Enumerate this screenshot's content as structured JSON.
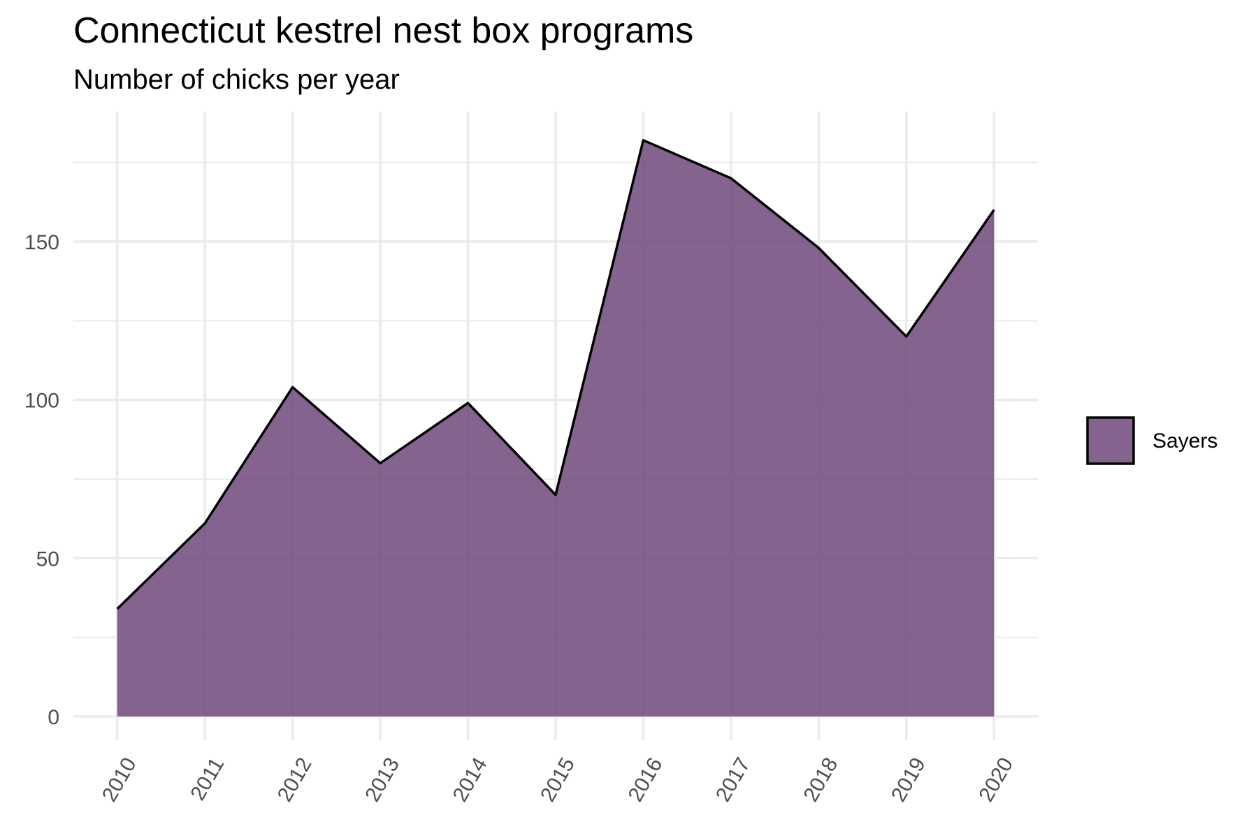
{
  "chart_data": {
    "type": "area",
    "title": "Connecticut kestrel nest box programs",
    "subtitle": "Number of chicks per year",
    "xlabel": "",
    "ylabel": "",
    "x": [
      2010,
      2011,
      2012,
      2013,
      2014,
      2015,
      2016,
      2017,
      2018,
      2019,
      2020
    ],
    "series": [
      {
        "name": "Sayers",
        "values": [
          34,
          61,
          104,
          80,
          99,
          70,
          182,
          170,
          148,
          120,
          160
        ],
        "fill": "#6b4578",
        "fill_opacity": 0.83,
        "line_color": "#000000"
      }
    ],
    "y_ticks": [
      0,
      50,
      100,
      150
    ],
    "y_tick_labels": [
      "0",
      "50",
      "100",
      "150"
    ],
    "x_tick_labels": [
      "2010",
      "2011",
      "2012",
      "2013",
      "2014",
      "2015",
      "2016",
      "2017",
      "2018",
      "2019",
      "2020"
    ],
    "xlim": [
      2009.5,
      2020.5
    ],
    "ylim": [
      -7.5,
      191
    ],
    "grid": true,
    "grid_color": "#ebebeb",
    "legend_position": "right"
  }
}
